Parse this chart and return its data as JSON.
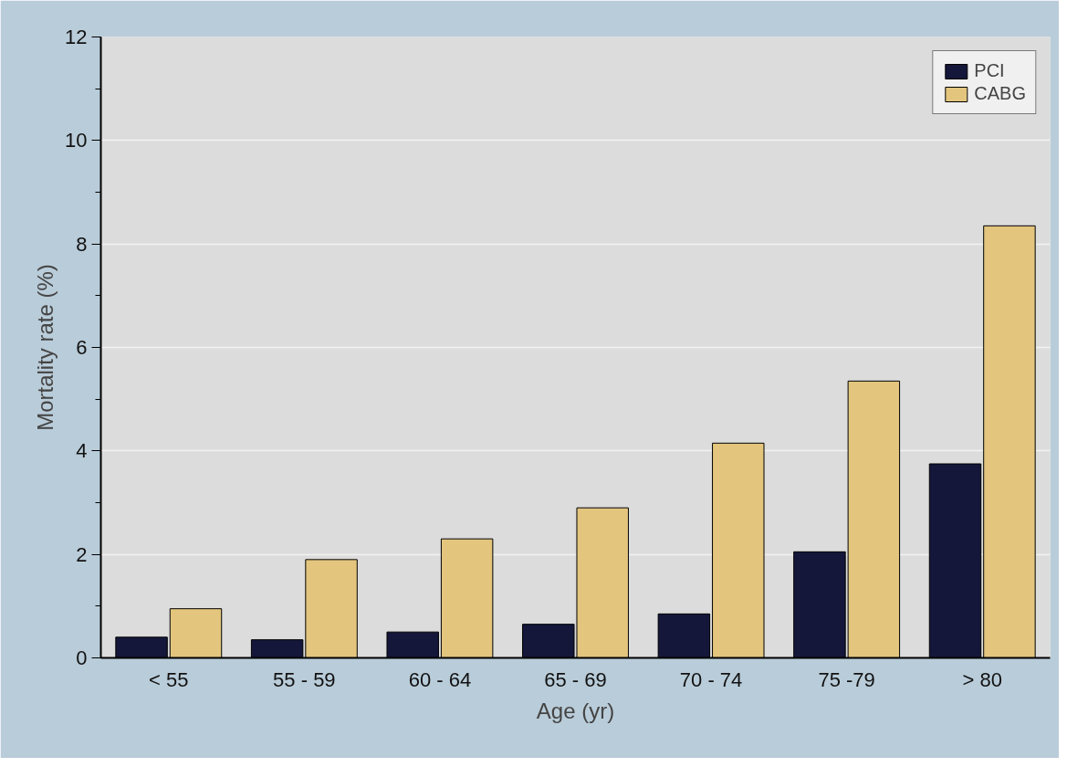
{
  "chart_data": {
    "type": "bar",
    "xlabel": "Age (yr)",
    "ylabel": "Mortality rate (%)",
    "categories": [
      "< 55",
      "55 - 59",
      "60 - 64",
      "65 - 69",
      "70 - 74",
      "75 -79",
      "> 80"
    ],
    "series": [
      {
        "name": "PCI",
        "color": "#14163a",
        "values": [
          0.4,
          0.35,
          0.5,
          0.65,
          0.85,
          2.05,
          3.75
        ]
      },
      {
        "name": "CABG",
        "color": "#e3c57e",
        "values": [
          0.95,
          1.9,
          2.3,
          2.9,
          4.15,
          5.35,
          8.35
        ]
      }
    ],
    "ylim": [
      0,
      12
    ],
    "yticks": [
      0,
      2,
      4,
      6,
      8,
      10,
      12
    ],
    "grid": "y",
    "legend": "top right"
  }
}
